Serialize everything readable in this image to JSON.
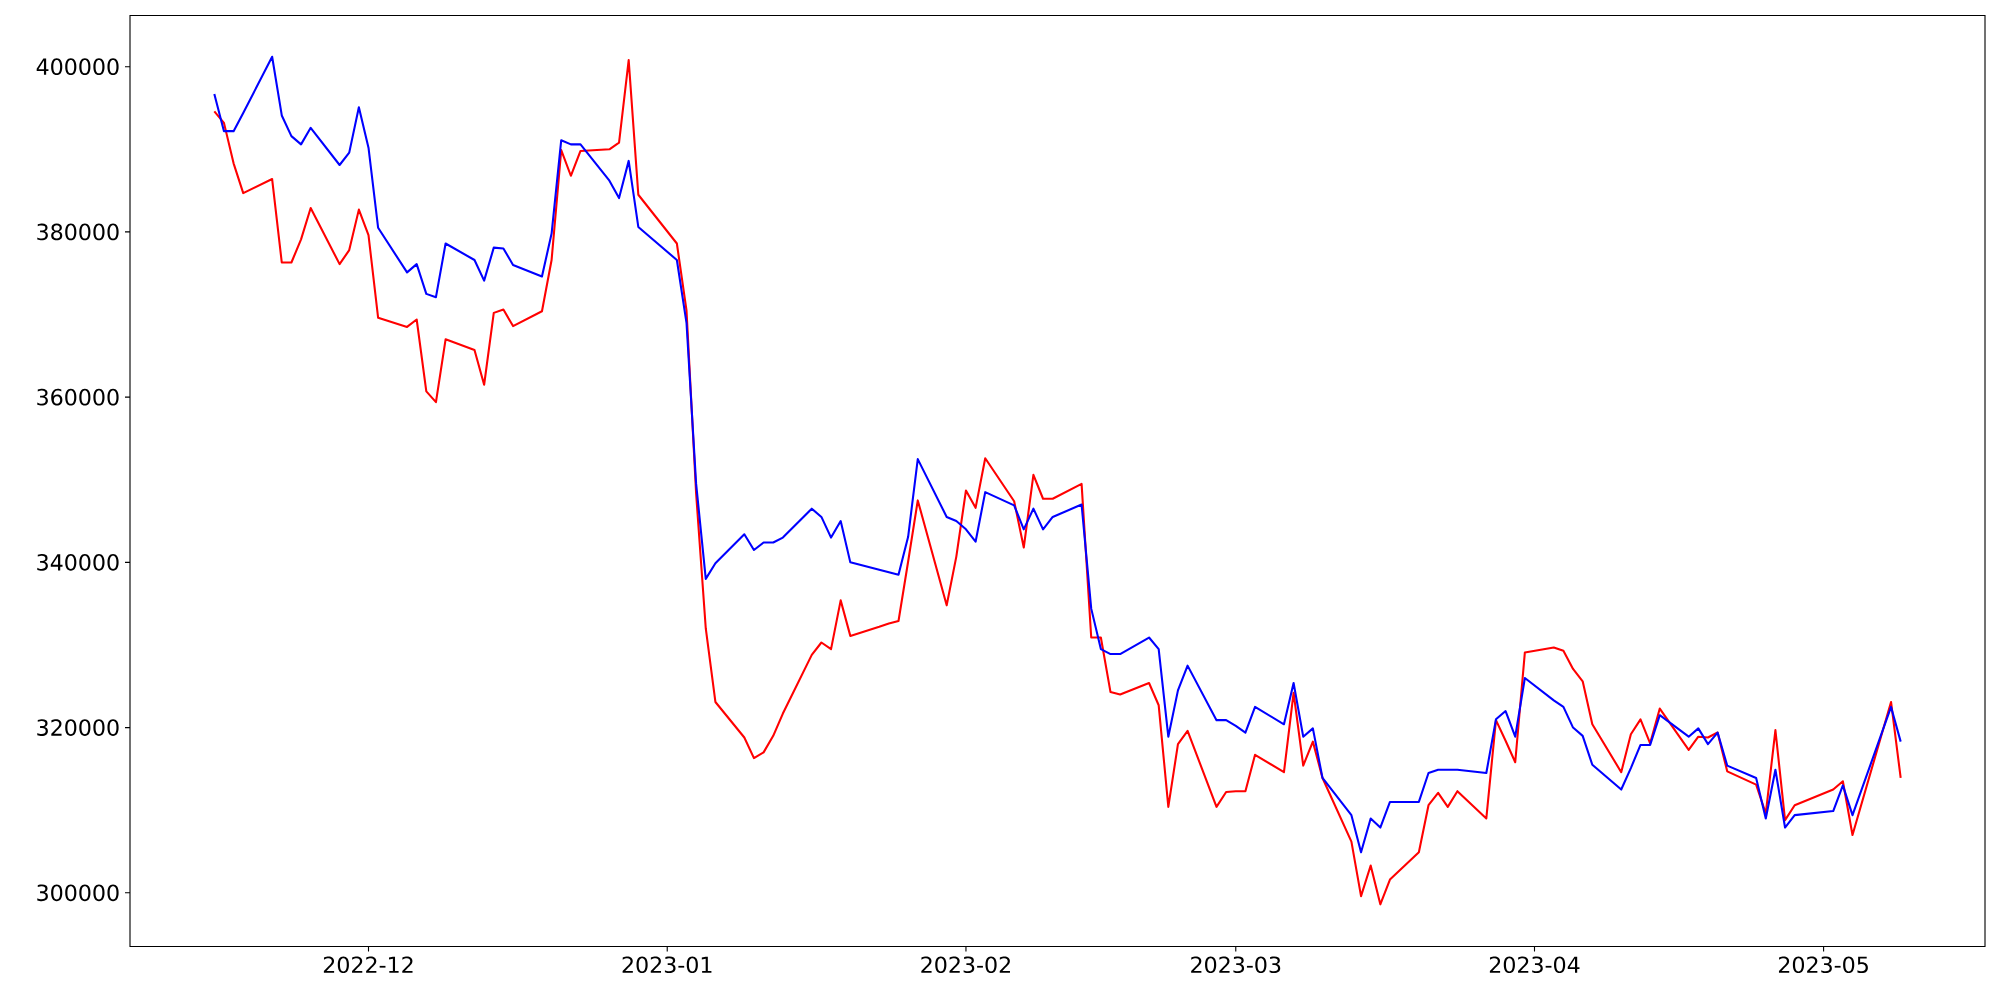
{
  "chart_data": {
    "type": "line",
    "x": [
      "2022-11-15",
      "2022-11-16",
      "2022-11-17",
      "2022-11-18",
      "2022-11-21",
      "2022-11-22",
      "2022-11-23",
      "2022-11-24",
      "2022-11-25",
      "2022-11-28",
      "2022-11-29",
      "2022-11-30",
      "2022-12-01",
      "2022-12-02",
      "2022-12-05",
      "2022-12-06",
      "2022-12-07",
      "2022-12-08",
      "2022-12-09",
      "2022-12-12",
      "2022-12-13",
      "2022-12-14",
      "2022-12-15",
      "2022-12-16",
      "2022-12-19",
      "2022-12-20",
      "2022-12-21",
      "2022-12-22",
      "2022-12-23",
      "2022-12-26",
      "2022-12-27",
      "2022-12-28",
      "2022-12-29",
      "2023-01-02",
      "2023-01-03",
      "2023-01-04",
      "2023-01-05",
      "2023-01-06",
      "2023-01-09",
      "2023-01-10",
      "2023-01-11",
      "2023-01-12",
      "2023-01-13",
      "2023-01-16",
      "2023-01-17",
      "2023-01-18",
      "2023-01-19",
      "2023-01-20",
      "2023-01-23",
      "2023-01-24",
      "2023-01-25",
      "2023-01-26",
      "2023-01-27",
      "2023-01-30",
      "2023-01-31",
      "2023-02-01",
      "2023-02-02",
      "2023-02-03",
      "2023-02-06",
      "2023-02-07",
      "2023-02-08",
      "2023-02-09",
      "2023-02-10",
      "2023-02-13",
      "2023-02-14",
      "2023-02-15",
      "2023-02-16",
      "2023-02-17",
      "2023-02-20",
      "2023-02-21",
      "2023-02-22",
      "2023-02-23",
      "2023-02-24",
      "2023-02-27",
      "2023-02-28",
      "2023-03-01",
      "2023-03-02",
      "2023-03-03",
      "2023-03-06",
      "2023-03-07",
      "2023-03-08",
      "2023-03-09",
      "2023-03-10",
      "2023-03-13",
      "2023-03-14",
      "2023-03-15",
      "2023-03-16",
      "2023-03-17",
      "2023-03-20",
      "2023-03-21",
      "2023-03-22",
      "2023-03-23",
      "2023-03-24",
      "2023-03-27",
      "2023-03-28",
      "2023-03-29",
      "2023-03-30",
      "2023-03-31",
      "2023-04-03",
      "2023-04-04",
      "2023-04-05",
      "2023-04-06",
      "2023-04-07",
      "2023-04-10",
      "2023-04-11",
      "2023-04-12",
      "2023-04-13",
      "2023-04-14",
      "2023-04-17",
      "2023-04-18",
      "2023-04-19",
      "2023-04-20",
      "2023-04-21",
      "2023-04-24",
      "2023-04-25",
      "2023-04-26",
      "2023-04-27",
      "2023-04-28",
      "2023-05-02",
      "2023-05-03",
      "2023-05-04",
      "2023-05-08",
      "2023-05-09"
    ],
    "series": [
      {
        "color": "#ff0000",
        "values": [
          394600,
          393200,
          388300,
          384700,
          386400,
          376300,
          376300,
          379100,
          382900,
          376100,
          377800,
          382700,
          379600,
          369600,
          368500,
          369400,
          360700,
          359400,
          367000,
          365700,
          361500,
          370200,
          370600,
          368600,
          370400,
          376600,
          389900,
          386800,
          389800,
          390000,
          390800,
          400800,
          384500,
          378600,
          370500,
          348300,
          332000,
          323100,
          318800,
          316300,
          317000,
          319000,
          321700,
          328800,
          330300,
          329500,
          335400,
          331100,
          332200,
          332600,
          332900,
          340100,
          347500,
          334800,
          340700,
          348700,
          346600,
          352600,
          347400,
          341800,
          350600,
          347700,
          347700,
          349500,
          330900,
          330900,
          324300,
          324000,
          325400,
          322700,
          310400,
          318000,
          319600,
          310400,
          312200,
          312300,
          312300,
          316700,
          314600,
          324200,
          315400,
          318300,
          313900,
          306200,
          299600,
          303300,
          298600,
          301600,
          304900,
          310600,
          312100,
          310400,
          312300,
          309000,
          320900,
          318400,
          315800,
          329100,
          329700,
          329300,
          327100,
          325600,
          320400,
          314600,
          319200,
          321000,
          318100,
          322300,
          317300,
          318900,
          318800,
          319400,
          314700,
          313100,
          309600,
          319700,
          308800,
          310600,
          312500,
          313500,
          307000,
          323100,
          313900
        ]
      },
      {
        "color": "#0000ff",
        "values": [
          396700,
          392200,
          392200,
          394400,
          401200,
          394100,
          391600,
          390600,
          392600,
          388100,
          389600,
          395100,
          390200,
          380500,
          375100,
          376100,
          372500,
          372100,
          378600,
          376600,
          374100,
          378100,
          378000,
          376000,
          374600,
          379800,
          391100,
          390600,
          390600,
          386200,
          384100,
          388600,
          380600,
          376600,
          369000,
          349500,
          338000,
          339900,
          343400,
          341500,
          342400,
          342400,
          343000,
          346500,
          345500,
          343000,
          345000,
          340000,
          339100,
          338800,
          338500,
          343100,
          352500,
          345500,
          345000,
          344000,
          342500,
          348500,
          346900,
          344000,
          346500,
          344000,
          345500,
          347000,
          334400,
          329500,
          328900,
          328900,
          330900,
          329500,
          318900,
          324500,
          327500,
          320900,
          320900,
          320200,
          319400,
          322500,
          320400,
          325400,
          318900,
          319900,
          313900,
          309400,
          304900,
          309000,
          307900,
          311000,
          311000,
          314500,
          314900,
          314900,
          314900,
          314500,
          321000,
          322000,
          318900,
          326000,
          323300,
          322500,
          320000,
          319000,
          315500,
          312500,
          315100,
          317900,
          317900,
          321500,
          318900,
          319900,
          318000,
          319400,
          315400,
          313900,
          309000,
          314900,
          307900,
          309400,
          309900,
          313000,
          309400,
          322500,
          318300
        ]
      }
    ],
    "xlim": [
      "2022-11-06T06:00",
      "2023-05-17T18:00"
    ],
    "ylim": [
      293500,
      406200
    ],
    "xticks": [
      "2022-12",
      "2023-01",
      "2023-02",
      "2023-03",
      "2023-04",
      "2023-05"
    ],
    "yticks": [
      300000,
      320000,
      340000,
      360000,
      380000,
      400000
    ]
  }
}
